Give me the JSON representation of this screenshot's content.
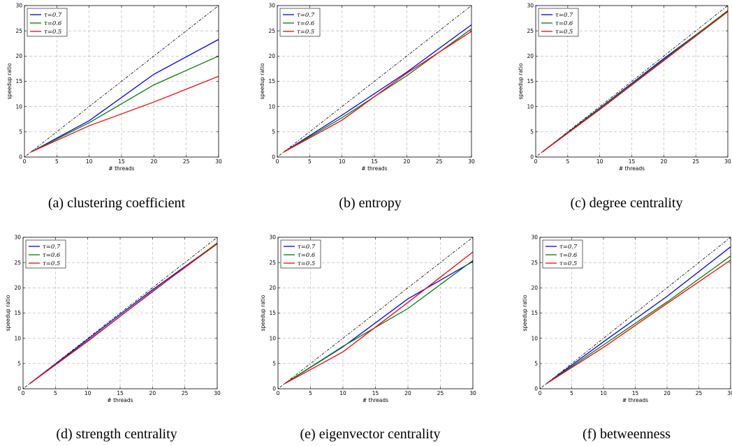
{
  "colors": {
    "tau07": "#0000ff",
    "tau06": "#008000",
    "tau05": "#ff0000",
    "ideal": "#000000"
  },
  "chart_data": [
    {
      "type": "line",
      "caption": "(a) clustering coefficient",
      "xlabel": "# threads",
      "ylabel": "speedup ratio",
      "xlim": [
        0,
        30
      ],
      "ylim": [
        0,
        30
      ],
      "xticks": [
        0,
        5,
        10,
        15,
        20,
        25,
        30
      ],
      "yticks": [
        0,
        5,
        10,
        15,
        20,
        25,
        30
      ],
      "grid": true,
      "legend": "top-left",
      "x": [
        1,
        10,
        20,
        30
      ],
      "series": [
        {
          "name": "τ=0.7",
          "values": [
            1,
            7.2,
            16.4,
            23.3
          ]
        },
        {
          "name": "τ=0.6",
          "values": [
            1,
            6.8,
            14.3,
            20.0
          ]
        },
        {
          "name": "τ=0.5",
          "values": [
            1,
            6.2,
            10.9,
            16.0
          ]
        }
      ]
    },
    {
      "type": "line",
      "caption": "(b) entropy",
      "xlabel": "# threads",
      "ylabel": "speedup ratio",
      "xlim": [
        0,
        30
      ],
      "ylim": [
        0,
        30
      ],
      "xticks": [
        0,
        5,
        10,
        15,
        20,
        25,
        30
      ],
      "yticks": [
        0,
        5,
        10,
        15,
        20,
        25,
        30
      ],
      "grid": true,
      "legend": "top-left",
      "x": [
        1,
        10,
        20,
        30
      ],
      "series": [
        {
          "name": "τ=0.7",
          "values": [
            1,
            8.3,
            16.8,
            26.2
          ]
        },
        {
          "name": "τ=0.6",
          "values": [
            1,
            7.8,
            16.1,
            25.4
          ]
        },
        {
          "name": "τ=0.5",
          "values": [
            1,
            7.3,
            16.6,
            24.9
          ]
        }
      ]
    },
    {
      "type": "line",
      "caption": "(c) degree centrality",
      "xlabel": "# threads",
      "ylabel": "speedup ratio",
      "xlim": [
        0,
        30
      ],
      "ylim": [
        0,
        30
      ],
      "xticks": [
        0,
        5,
        10,
        15,
        20,
        25,
        30
      ],
      "yticks": [
        0,
        5,
        10,
        15,
        20,
        25,
        30
      ],
      "grid": true,
      "legend": "top-left",
      "x": [
        1,
        10,
        20,
        30
      ],
      "series": [
        {
          "name": "τ=0.7",
          "values": [
            1,
            9.7,
            19.5,
            28.9
          ]
        },
        {
          "name": "τ=0.6",
          "values": [
            1,
            9.6,
            19.3,
            29.0
          ]
        },
        {
          "name": "τ=0.5",
          "values": [
            1,
            9.4,
            19.1,
            28.8
          ]
        }
      ]
    },
    {
      "type": "line",
      "caption": "(d) strength centrality",
      "xlabel": "# threads",
      "ylabel": "speedup ratio",
      "xlim": [
        0,
        30
      ],
      "ylim": [
        0,
        30
      ],
      "xticks": [
        0,
        5,
        10,
        15,
        20,
        25,
        30
      ],
      "yticks": [
        0,
        5,
        10,
        15,
        20,
        25,
        30
      ],
      "grid": true,
      "legend": "top-left",
      "x": [
        1,
        10,
        20,
        30
      ],
      "series": [
        {
          "name": "τ=0.7",
          "values": [
            1,
            9.8,
            19.6,
            28.8
          ]
        },
        {
          "name": "τ=0.6",
          "values": [
            1,
            9.4,
            19.3,
            28.7
          ]
        },
        {
          "name": "τ=0.5",
          "values": [
            1,
            9.5,
            19.2,
            28.9
          ]
        }
      ]
    },
    {
      "type": "line",
      "caption": "(e) eigenvector centrality",
      "xlabel": "# threads",
      "ylabel": "speedup ratio",
      "xlim": [
        0,
        30
      ],
      "ylim": [
        0,
        30
      ],
      "xticks": [
        0,
        5,
        10,
        15,
        20,
        25,
        30
      ],
      "yticks": [
        0,
        5,
        10,
        15,
        20,
        25,
        30
      ],
      "grid": true,
      "legend": "top-left",
      "x": [
        1,
        10,
        20,
        30
      ],
      "series": [
        {
          "name": "τ=0.7",
          "values": [
            1,
            8.3,
            17.8,
            25.2
          ]
        },
        {
          "name": "τ=0.6",
          "values": [
            1,
            8.4,
            15.9,
            25.4
          ]
        },
        {
          "name": "τ=0.5",
          "values": [
            1,
            7.3,
            17.1,
            27.1
          ]
        }
      ]
    },
    {
      "type": "line",
      "caption": "(f) betweenness",
      "xlabel": "# threads",
      "ylabel": "speedup ratio",
      "xlim": [
        0,
        30
      ],
      "ylim": [
        0,
        30
      ],
      "xticks": [
        0,
        5,
        10,
        15,
        20,
        25,
        30
      ],
      "yticks": [
        0,
        5,
        10,
        15,
        20,
        25,
        30
      ],
      "grid": true,
      "legend": "top-left",
      "x": [
        1,
        10,
        20,
        30
      ],
      "series": [
        {
          "name": "τ=0.7",
          "values": [
            1,
            9.3,
            18.3,
            28.1
          ]
        },
        {
          "name": "τ=0.6",
          "values": [
            1,
            8.7,
            17.2,
            26.3
          ]
        },
        {
          "name": "τ=0.5",
          "values": [
            1,
            8.2,
            16.9,
            25.5
          ]
        }
      ]
    }
  ]
}
